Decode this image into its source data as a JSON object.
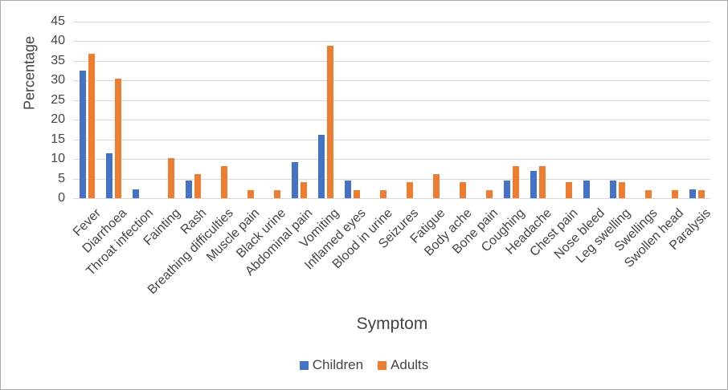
{
  "chart_data": {
    "type": "bar",
    "title": "",
    "xlabel": "Symptom",
    "ylabel": "Percentage",
    "ylim": [
      0,
      45
    ],
    "yticks": [
      0,
      5,
      10,
      15,
      20,
      25,
      30,
      35,
      40,
      45
    ],
    "grid": true,
    "legend_position": "bottom-center",
    "categories": [
      "Fever",
      "Diarrhoea",
      "Throat infection",
      "Fainting",
      "Rash",
      "Breathing difficulties",
      "Muscle pain",
      "Black urine",
      "Abdominal pain",
      "Vomiting",
      "Inflamed eyes",
      "Blood in urine",
      "Seizures",
      "Fatigue",
      "Body ache",
      "Bone pain",
      "Coughing",
      "Headache",
      "Chest pain",
      "Nose bleed",
      "Leg swelling",
      "Swellings",
      "Swollen head",
      "Paralysis"
    ],
    "series": [
      {
        "name": "Children",
        "color": "#4472C4",
        "values": [
          32.5,
          11.5,
          2.3,
          0,
          4.6,
          0,
          0,
          0,
          9.3,
          16.1,
          4.6,
          0,
          0,
          0,
          0,
          0,
          4.6,
          7.0,
          0,
          4.6,
          4.6,
          0,
          0,
          2.3
        ]
      },
      {
        "name": "Adults",
        "color": "#ED7D31",
        "values": [
          36.8,
          30.5,
          0,
          10.2,
          6.1,
          8.2,
          2.0,
          2.0,
          4.1,
          38.8,
          2.0,
          2.0,
          4.1,
          6.1,
          4.1,
          2.0,
          8.2,
          8.2,
          4.1,
          0,
          4.1,
          2.0,
          2.0,
          2.0
        ]
      }
    ]
  },
  "colors": {
    "gridline": "#d9d9d9",
    "text": "#444444",
    "figure_border": "#ababab"
  }
}
